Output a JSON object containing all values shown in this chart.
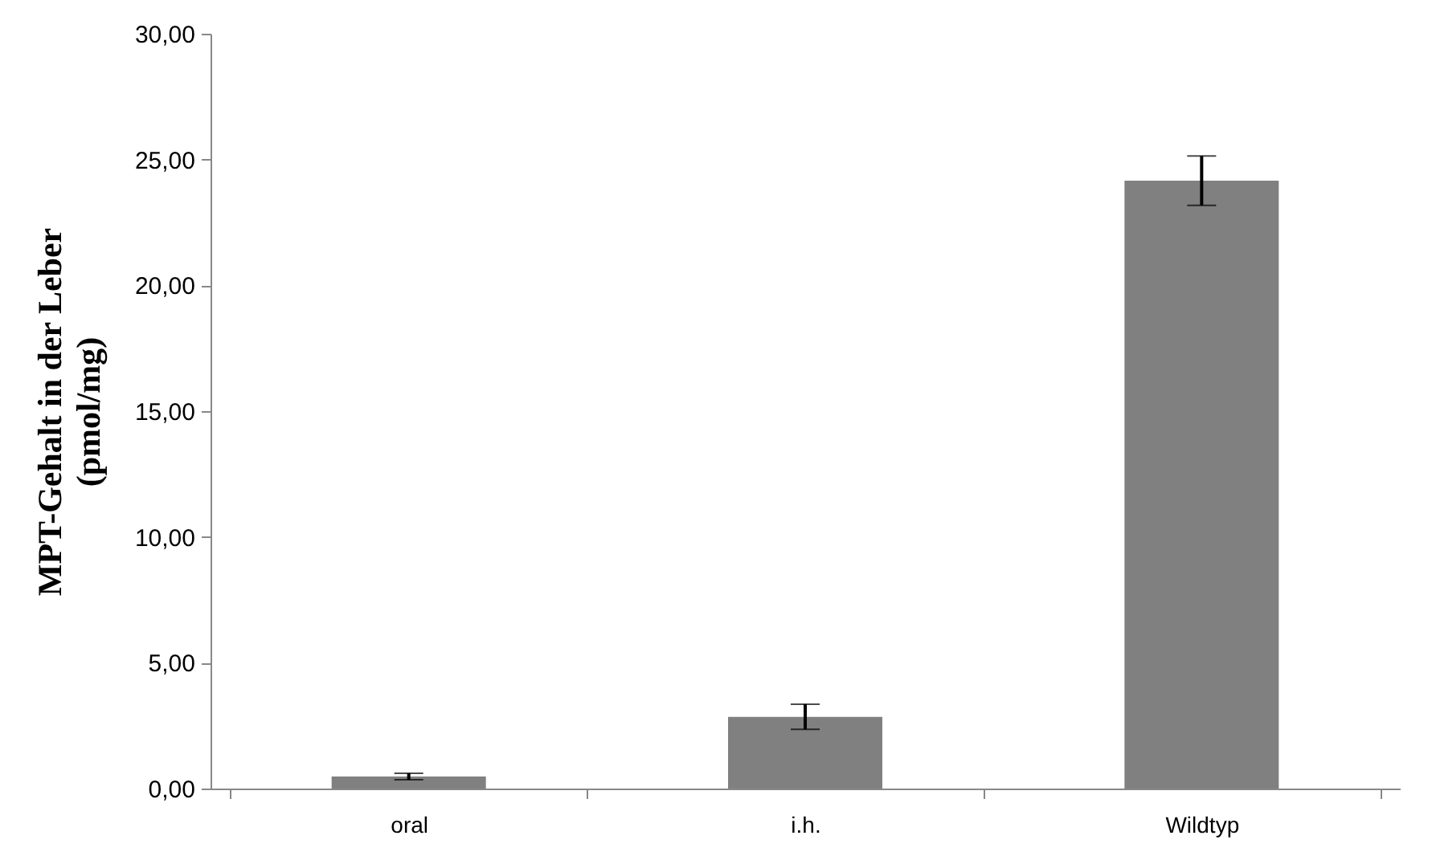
{
  "chart_data": {
    "type": "bar",
    "ylabel": "MPT-Gehalt in der Leber\n(pmol/mg)",
    "categories": [
      "oral",
      "i.h.",
      "Wildtyp"
    ],
    "values": [
      0.48,
      2.85,
      24.16
    ],
    "errors": [
      0.13,
      0.5,
      0.98
    ],
    "color": "#808080",
    "ylim": [
      0,
      30
    ],
    "yticks": [
      {
        "value": 0,
        "label": "0,00"
      },
      {
        "value": 5,
        "label": "5,00"
      },
      {
        "value": 10,
        "label": "10,00"
      },
      {
        "value": 15,
        "label": "15,00"
      },
      {
        "value": 20,
        "label": "20,00"
      },
      {
        "value": 25,
        "label": "25,00"
      },
      {
        "value": 30,
        "label": "30,00"
      }
    ],
    "grid": false
  }
}
